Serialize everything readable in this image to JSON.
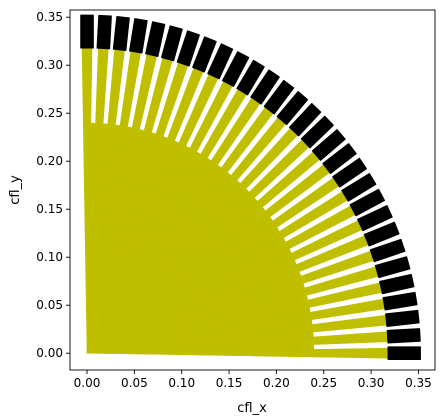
{
  "chart_data": {
    "type": "scatter",
    "title": "",
    "xlabel": "cfl_x",
    "ylabel": "cfl_y",
    "xlim": [
      -0.018,
      0.3675
    ],
    "ylim": [
      -0.0175,
      0.3575
    ],
    "x_ticks": [
      0.0,
      0.05,
      0.1,
      0.15,
      0.2,
      0.25,
      0.3,
      0.35
    ],
    "x_tick_labels": [
      "0.00",
      "0.05",
      "0.10",
      "0.15",
      "0.20",
      "0.25",
      "0.30",
      "0.35"
    ],
    "y_ticks": [
      0.0,
      0.05,
      0.1,
      0.15,
      0.2,
      0.25,
      0.3,
      0.35
    ],
    "y_tick_labels": [
      "0.00",
      "0.05",
      "0.10",
      "0.15",
      "0.20",
      "0.25",
      "0.30",
      "0.35"
    ],
    "grid": false,
    "legend": "none",
    "colors": {
      "stable": "#bfbf00",
      "unstable": "#000000"
    },
    "series": [
      {
        "color": "#bfbf00",
        "marker": "wedge",
        "rays": 30,
        "angle_range_deg": [
          0,
          90
        ],
        "radius_range": [
          0.0,
          0.318
        ]
      },
      {
        "color": "#000000",
        "marker": "band",
        "rays": 30,
        "angle_range_deg": [
          0,
          90
        ],
        "radius_range": [
          0.318,
          0.352
        ]
      }
    ]
  }
}
